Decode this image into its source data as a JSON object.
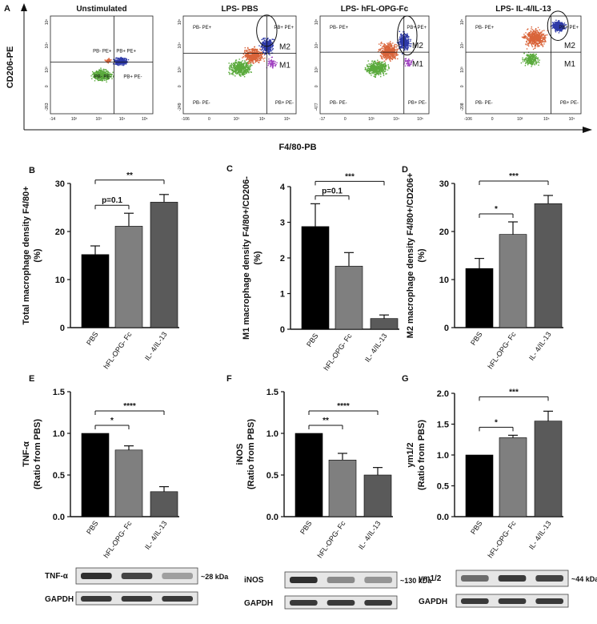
{
  "figure": {
    "panel_a": {
      "letter": "A",
      "y_axis_label": "CD206-PE",
      "x_axis_label": "F4/80-PB",
      "plots": [
        {
          "title": "Unstimulated",
          "quads": [
            "PB- PE+",
            "PB+ PE+",
            "PB- PE-",
            "PB+ PE-"
          ],
          "gates": [],
          "xticks": [
            "-14",
            "10²",
            "10³",
            "10⁴",
            "10⁵"
          ],
          "yticks": [
            "10⁵",
            "10⁴",
            "10³",
            "0",
            "-263"
          ]
        },
        {
          "title": "LPS- PBS",
          "quads": [
            "PB- PE+",
            "PB+ PE+",
            "PB- PE-",
            "PB+ PE-"
          ],
          "gates": [
            "M2",
            "M1"
          ],
          "xticks": [
            "-106",
            "0",
            "10³",
            "10⁴",
            "10⁵"
          ],
          "yticks": [
            "10⁵",
            "10⁴",
            "10³",
            "0",
            "-249"
          ]
        },
        {
          "title": "LPS- hFL-OPG-Fc",
          "quads": [
            "PB- PE+",
            "PB+ PE+",
            "PB- PE-",
            "PB+ PE-"
          ],
          "gates": [
            "M2",
            "M1"
          ],
          "xticks": [
            "-17",
            "0",
            "10³",
            "10⁴",
            "10⁵"
          ],
          "yticks": [
            "10⁵",
            "10⁴",
            "10³",
            "0",
            "-477"
          ]
        },
        {
          "title": "LPS- IL-4/IL-13",
          "quads": [
            "PB- PE+",
            "PB+ PE+",
            "PB- PE-",
            "PB+ PE-"
          ],
          "gates": [
            "M2",
            "M1"
          ],
          "xticks": [
            "-106",
            "0",
            "10³",
            "10⁴",
            "10⁵"
          ],
          "yticks": [
            "10⁵",
            "10⁴",
            "10³",
            "0",
            "-208"
          ]
        }
      ]
    },
    "blots": [
      {
        "target": "TNF-α",
        "kda": "~28 kDa",
        "loading": "GAPDH"
      },
      {
        "target": "iNOS",
        "kda": "~130 kDa",
        "loading": "GAPDH"
      },
      {
        "target": "ym1/2",
        "kda": "~44 kDa",
        "loading": "GAPDH"
      }
    ]
  },
  "chart_data": [
    {
      "panel": "B",
      "type": "bar",
      "categories": [
        "PBS",
        "hFL-OPG- Fc",
        "IL- 4/IL-13"
      ],
      "values": [
        15.2,
        21.1,
        26.1
      ],
      "errors": [
        1.8,
        2.7,
        1.6
      ],
      "ylabel": "Total macrophage density F4/80+ (%)",
      "ylim": [
        0,
        30
      ],
      "yticks": [
        "0",
        "10",
        "20",
        "30"
      ],
      "brackets": [
        {
          "from": 0,
          "to": 1,
          "label": "p=0.1"
        },
        {
          "from": 0,
          "to": 2,
          "label": "**"
        }
      ]
    },
    {
      "panel": "C",
      "type": "bar",
      "categories": [
        "PBS",
        "hFL-OPG- Fc",
        "IL- 4/IL-13"
      ],
      "values": [
        2.88,
        1.77,
        0.3
      ],
      "errors": [
        0.64,
        0.38,
        0.1
      ],
      "ylabel": "M1 macrophage density F4/80+/CD206- (%)",
      "ylim": [
        0,
        4
      ],
      "yticks": [
        "0",
        "1",
        "2",
        "3",
        "4"
      ],
      "brackets": [
        {
          "from": 0,
          "to": 1,
          "label": "p=0.1"
        },
        {
          "from": 0,
          "to": 2,
          "label": "***"
        }
      ]
    },
    {
      "panel": "D",
      "type": "bar",
      "categories": [
        "PBS",
        "hFL-OPG- Fc",
        "IL- 4/IL-13"
      ],
      "values": [
        12.3,
        19.4,
        25.8
      ],
      "errors": [
        2.1,
        2.6,
        1.7
      ],
      "ylabel": "M2 macrophage density F4/80+/CD206+ (%)",
      "ylim": [
        0,
        30
      ],
      "yticks": [
        "0",
        "10",
        "20",
        "30"
      ],
      "brackets": [
        {
          "from": 0,
          "to": 1,
          "label": "*"
        },
        {
          "from": 0,
          "to": 2,
          "label": "***"
        }
      ]
    },
    {
      "panel": "E",
      "type": "bar",
      "categories": [
        "PBS",
        "hFL-OPG- Fc",
        "IL- 4/IL-13"
      ],
      "values": [
        1.0,
        0.8,
        0.3
      ],
      "errors": [
        0.0,
        0.05,
        0.06
      ],
      "ylabel": "TNF-α (Ratio from PBS)",
      "ylim": [
        0,
        1.5
      ],
      "yticks": [
        "0.0",
        "0.5",
        "1.0",
        "1.5"
      ],
      "brackets": [
        {
          "from": 0,
          "to": 1,
          "label": "*"
        },
        {
          "from": 0,
          "to": 2,
          "label": "****"
        }
      ]
    },
    {
      "panel": "F",
      "type": "bar",
      "categories": [
        "PBS",
        "hFL-OPG- Fc",
        "IL- 4/IL-13"
      ],
      "values": [
        1.0,
        0.68,
        0.5
      ],
      "errors": [
        0.0,
        0.08,
        0.09
      ],
      "ylabel": "iNOS (Ratio from PBS)",
      "ylim": [
        0,
        1.5
      ],
      "yticks": [
        "0.0",
        "0.5",
        "1.0",
        "1.5"
      ],
      "brackets": [
        {
          "from": 0,
          "to": 1,
          "label": "**"
        },
        {
          "from": 0,
          "to": 2,
          "label": "****"
        }
      ]
    },
    {
      "panel": "G",
      "type": "bar",
      "categories": [
        "PBS",
        "hFL-OPG- Fc",
        "IL- 4/IL-13"
      ],
      "values": [
        1.0,
        1.28,
        1.55
      ],
      "errors": [
        0.0,
        0.04,
        0.16
      ],
      "ylabel": "ym1/2 (Ratio from PBS)",
      "ylim": [
        0,
        2.0
      ],
      "yticks": [
        "0.0",
        "0.5",
        "1.0",
        "1.5",
        "2.0"
      ],
      "brackets": [
        {
          "from": 0,
          "to": 1,
          "label": "*"
        },
        {
          "from": 0,
          "to": 2,
          "label": "***"
        }
      ]
    }
  ],
  "colors": {
    "black_bar": "#000000",
    "mid_bar": "#7f7f7f",
    "dark_bar": "#5a5a5a",
    "green": "#5aaa3c",
    "orange": "#d9643a",
    "blue": "#2e3aa8",
    "purple": "#a040c0"
  }
}
